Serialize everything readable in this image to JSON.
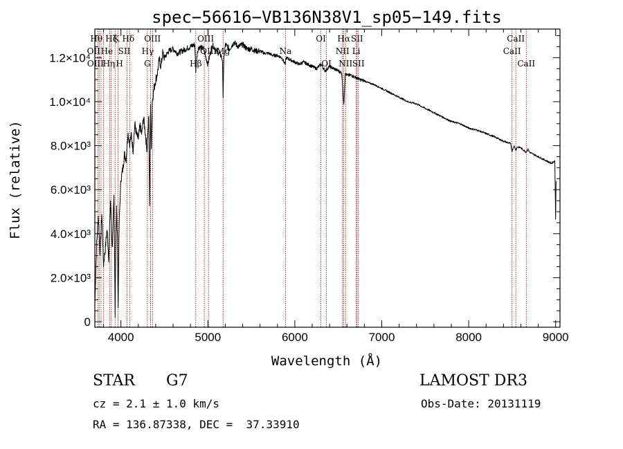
{
  "chart_data": {
    "type": "line",
    "title": "spec−56616−VB136N38V1_sp05−149.fits",
    "xlabel": "Wavelength (Å)",
    "ylabel": "Flux (relative)",
    "xlim": [
      3700,
      9050
    ],
    "ylim": [
      -250,
      13300
    ],
    "grid": false,
    "x_ticks": [
      {
        "value": 4000,
        "label": "4000"
      },
      {
        "value": 5000,
        "label": "5000"
      },
      {
        "value": 6000,
        "label": "6000"
      },
      {
        "value": 7000,
        "label": "7000"
      },
      {
        "value": 8000,
        "label": "8000"
      },
      {
        "value": 9000,
        "label": "9000"
      }
    ],
    "y_ticks": [
      {
        "value": 0,
        "label": "0"
      },
      {
        "value": 2000,
        "label": "2.0×10³"
      },
      {
        "value": 4000,
        "label": "4.0×10³"
      },
      {
        "value": 6000,
        "label": "6.0×10³"
      },
      {
        "value": 8000,
        "label": "8.0×10³"
      },
      {
        "value": 10000,
        "label": "1.0×10⁴"
      },
      {
        "value": 12000,
        "label": "1.2×10⁴"
      }
    ],
    "series": [
      {
        "name": "flux",
        "x": [
          3700,
          3720,
          3740,
          3760,
          3780,
          3800,
          3820,
          3840,
          3860,
          3880,
          3900,
          3920,
          3933,
          3940,
          3950,
          3960,
          3968,
          3980,
          4000,
          4020,
          4040,
          4060,
          4080,
          4101,
          4120,
          4140,
          4160,
          4180,
          4200,
          4220,
          4240,
          4260,
          4280,
          4300,
          4320,
          4330,
          4340,
          4350,
          4360,
          4380,
          4400,
          4420,
          4440,
          4460,
          4480,
          4500,
          4550,
          4600,
          4650,
          4700,
          4750,
          4800,
          4850,
          4861,
          4880,
          4900,
          4950,
          5000,
          5050,
          5100,
          5150,
          5167,
          5175,
          5183,
          5200,
          5250,
          5300,
          5350,
          5400,
          5450,
          5500,
          5550,
          5600,
          5650,
          5700,
          5750,
          5800,
          5850,
          5890,
          5900,
          5950,
          6000,
          6050,
          6100,
          6150,
          6200,
          6250,
          6300,
          6350,
          6400,
          6450,
          6500,
          6540,
          6563,
          6580,
          6600,
          6650,
          6700,
          6750,
          6800,
          6850,
          6900,
          6950,
          7000,
          7100,
          7200,
          7300,
          7400,
          7500,
          7600,
          7700,
          7800,
          7900,
          8000,
          8100,
          8200,
          8300,
          8400,
          8480,
          8498,
          8520,
          8542,
          8560,
          8600,
          8662,
          8680,
          8700,
          8750,
          8800,
          8850,
          8900,
          8950,
          8990,
          9000,
          9005
        ],
        "y": [
          800,
          3500,
          4800,
          3200,
          4900,
          2600,
          3300,
          4200,
          2900,
          5500,
          3300,
          5600,
          400,
          3200,
          5200,
          3800,
          600,
          4500,
          6500,
          6900,
          7600,
          7400,
          8600,
          8100,
          8500,
          7800,
          9000,
          8500,
          8300,
          8900,
          8500,
          9300,
          8600,
          7800,
          9300,
          5400,
          9700,
          8000,
          10000,
          10600,
          11000,
          11300,
          11900,
          11600,
          12200,
          12000,
          12300,
          12400,
          12200,
          12300,
          12400,
          12500,
          12600,
          11400,
          12300,
          12500,
          12400,
          11700,
          12600,
          12300,
          12100,
          11900,
          10300,
          11800,
          12600,
          12400,
          12700,
          12500,
          12600,
          12400,
          12400,
          12300,
          12300,
          12200,
          12200,
          12100,
          12100,
          12000,
          11700,
          12000,
          11900,
          11800,
          11700,
          11800,
          11700,
          11600,
          11500,
          11700,
          11400,
          11600,
          11500,
          11400,
          11300,
          9800,
          11300,
          11200,
          11200,
          11100,
          11000,
          10950,
          10850,
          10800,
          10700,
          10600,
          10400,
          10200,
          10000,
          9900,
          9700,
          9500,
          9300,
          9100,
          9000,
          8800,
          8700,
          8550,
          8400,
          8200,
          8100,
          7750,
          8000,
          7800,
          7950,
          7900,
          7700,
          7850,
          7700,
          7600,
          7500,
          7400,
          7300,
          7200,
          7300,
          4700,
          6400
        ]
      }
    ],
    "lines": [
      {
        "w": 3734,
        "name": "Hθ",
        "row": 0,
        "dx": -2
      },
      {
        "w": 3750,
        "name": "OII",
        "row": 1,
        "dx": -8
      },
      {
        "w": 3771,
        "name": "OIII",
        "row": 2,
        "dx": -8
      },
      {
        "w": 3798,
        "name": "Hη",
        "row": 2,
        "dx": 8
      },
      {
        "w": 3870,
        "name": "He",
        "row": 1,
        "dx": -4
      },
      {
        "w": 3889,
        "name": "Hζ",
        "row": 0,
        "dx": 0
      },
      {
        "w": 3933,
        "name": "K",
        "row": 0,
        "dx": 2
      },
      {
        "w": 3968,
        "name": "H",
        "row": 2,
        "dx": 2
      },
      {
        "w": 4070,
        "name": "SII",
        "row": 1,
        "dx": -4
      },
      {
        "w": 4101,
        "name": "Hδ",
        "row": 0,
        "dx": -2
      },
      {
        "w": 4340,
        "name": "Hγ",
        "row": 1,
        "dx": -4
      },
      {
        "w": 4304,
        "name": "G",
        "row": 2,
        "dx": 0
      },
      {
        "w": 4363,
        "name": "OIII",
        "row": 0,
        "dx": 0
      },
      {
        "w": 4861,
        "name": "Hβ",
        "row": 2,
        "dx": 0
      },
      {
        "w": 4959,
        "name": "OIII",
        "row": 0,
        "dx": 2
      },
      {
        "w": 5007,
        "name": "OIII",
        "row": 1,
        "dx": 0
      },
      {
        "w": 5175,
        "name": "Mg",
        "row": 1,
        "dx": 0
      },
      {
        "w": 5893,
        "name": "Na",
        "row": 1,
        "dx": 0
      },
      {
        "w": 6300,
        "name": "OI",
        "row": 0,
        "dx": 0
      },
      {
        "w": 6364,
        "name": "OI",
        "row": 2,
        "dx": 0
      },
      {
        "w": 6548,
        "name": "NII",
        "row": 1,
        "dx": 0
      },
      {
        "w": 6563,
        "name": "Hα",
        "row": 0,
        "dx": 0
      },
      {
        "w": 6584,
        "name": "NII",
        "row": 2,
        "dx": 0
      },
      {
        "w": 6707,
        "name": "Li",
        "row": 1,
        "dx": 0
      },
      {
        "w": 6716,
        "name": "SII",
        "row": 0,
        "dx": 0
      },
      {
        "w": 6731,
        "name": "SII",
        "row": 2,
        "dx": 0
      },
      {
        "w": 8498,
        "name": "CaII",
        "row": 1,
        "dx": 0
      },
      {
        "w": 8542,
        "name": "CaII",
        "row": 0,
        "dx": 0
      },
      {
        "w": 8662,
        "name": "CaII",
        "row": 2,
        "dx": 0
      }
    ]
  },
  "info": {
    "object_class": "STAR",
    "subclass": "G7",
    "survey": "LAMOST DR3",
    "redshift": "cz = 2.1 ± 1.0 km/s",
    "obs_date": "Obs-Date: 20131119",
    "coords": "RA = 136.87338, DEC =  37.33910"
  },
  "colors": {
    "axis": "#000000",
    "flux": "#000000",
    "line_marker": "#8b0000"
  }
}
